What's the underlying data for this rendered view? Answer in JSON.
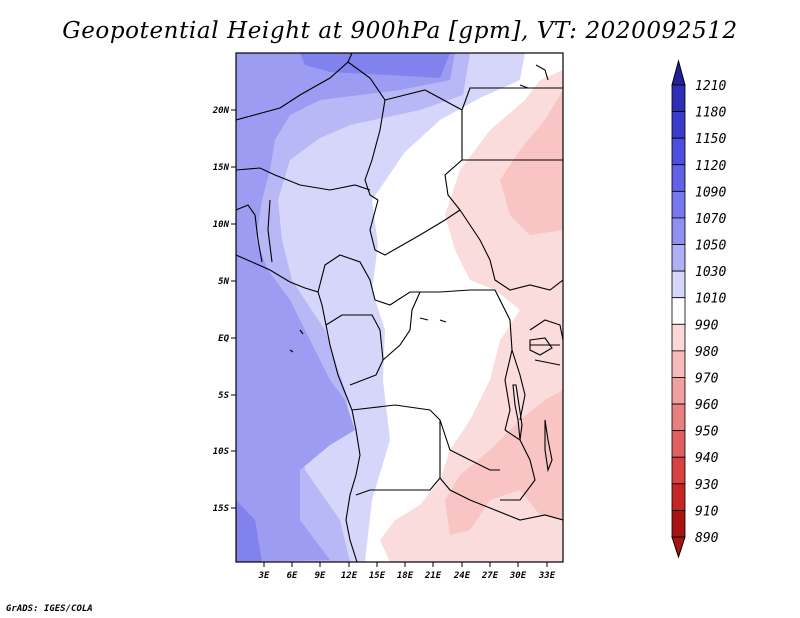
{
  "title": "Geopotential Height at 900hPa [gpm], VT: 2020092512",
  "credit": "GrADS: IGES/COLA",
  "map": {
    "lat_labels": [
      "20N",
      "15N",
      "10N",
      "5N",
      "EQ",
      "5S",
      "10S",
      "15S"
    ],
    "lon_labels": [
      "3E",
      "6E",
      "9E",
      "12E",
      "15E",
      "18E",
      "21E",
      "24E",
      "27E",
      "30E",
      "33E"
    ]
  },
  "colorbar": {
    "levels": [
      "1210",
      "1180",
      "1150",
      "1120",
      "1090",
      "1070",
      "1050",
      "1030",
      "1010",
      "990",
      "980",
      "970",
      "960",
      "950",
      "940",
      "930",
      "910",
      "890"
    ],
    "colors": [
      "#24209c",
      "#2e2eb6",
      "#3c3ccc",
      "#4e4ee0",
      "#6262e8",
      "#7878ee",
      "#9090f2",
      "#b0b0f6",
      "#d6d6fa",
      "#ffffff",
      "#fad8d8",
      "#f6bcbc",
      "#f0a0a0",
      "#e88080",
      "#e06060",
      "#d84242",
      "#c42626",
      "#a81414"
    ]
  }
}
